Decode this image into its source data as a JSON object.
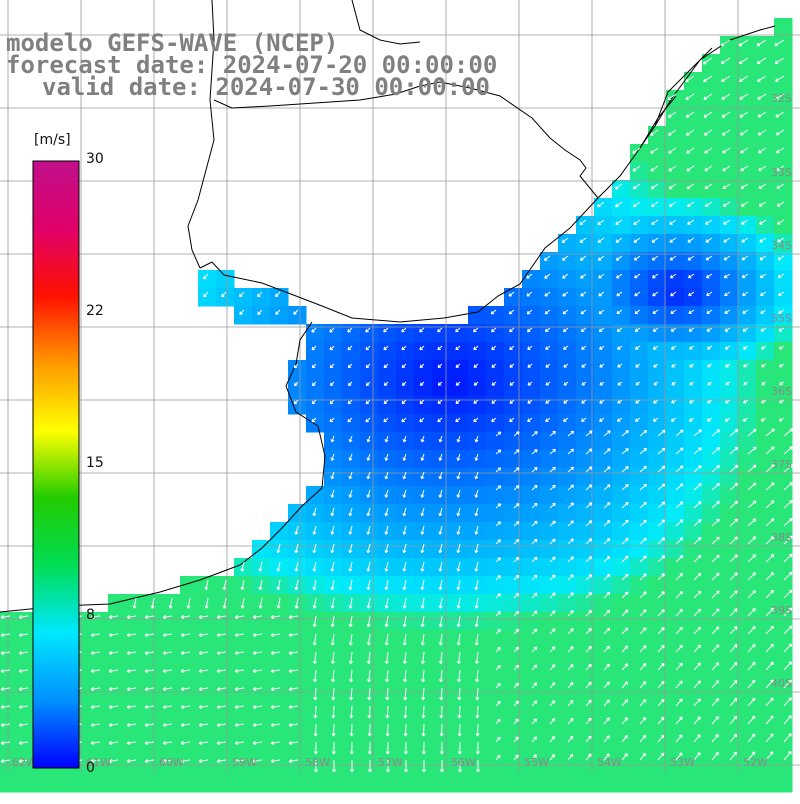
{
  "title": {
    "line1": "modelo GEFS-WAVE (NCEP)",
    "line2": "forecast date: 2024-07-20 00:00:00",
    "line3": "valid date: 2024-07-30 00:00:00"
  },
  "colorbar": {
    "units": "[m/s]",
    "ticks": [
      "30",
      "22",
      "15",
      "8",
      "0"
    ],
    "colors": [
      "#0000ff",
      "#0090ff",
      "#00e8ff",
      "#00dd55",
      "#22cc00",
      "#ffff00",
      "#ff9900",
      "#ff1100",
      "#e0006a",
      "#c0108a"
    ]
  },
  "lat_labels": [
    "32S",
    "33S",
    "34S",
    "35S",
    "36S",
    "37S",
    "38S",
    "39S",
    "40S"
  ],
  "lon_labels": [
    "62W",
    "61W",
    "60W",
    "59W",
    "58W",
    "57W",
    "56W",
    "55W",
    "54W",
    "53W",
    "52W"
  ]
}
